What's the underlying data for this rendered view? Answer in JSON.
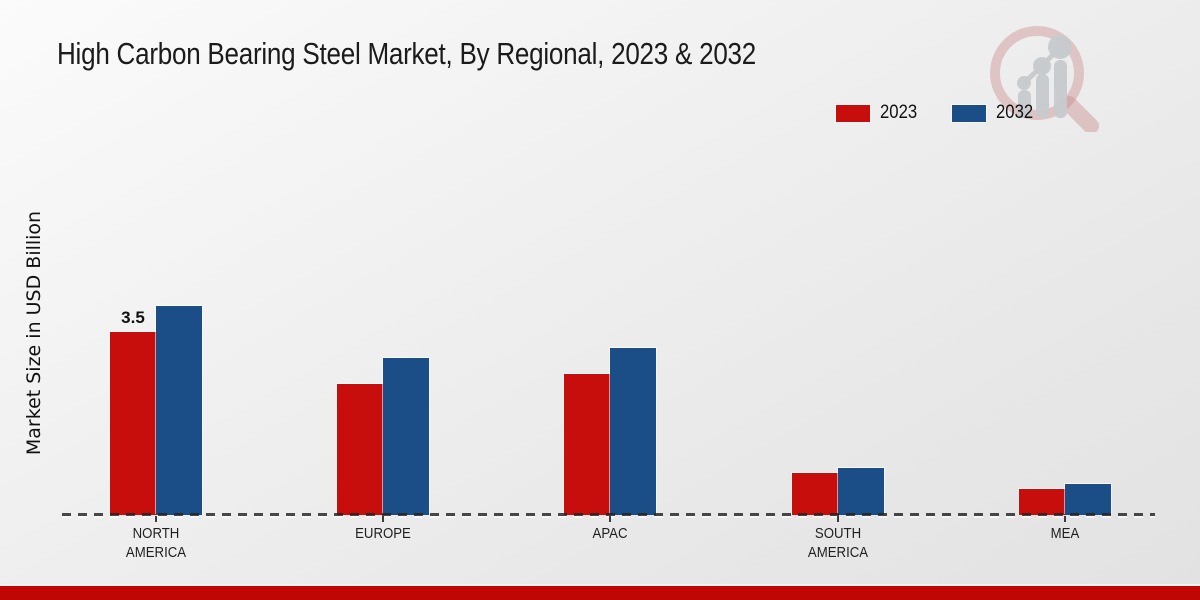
{
  "title": "High Carbon Bearing Steel Market, By Regional, 2023 & 2032",
  "y_axis_label": "Market Size in USD Billion",
  "legend": {
    "position": "top-right",
    "items": [
      {
        "label": "2023",
        "color": "#c80d0d"
      },
      {
        "label": "2032",
        "color": "#1b4d87"
      }
    ]
  },
  "colors": {
    "series_2023": "#c80d0d",
    "series_2032": "#1b4d87",
    "footer_bar": "#c00505",
    "axis_line": "#333333",
    "background": "#ececec"
  },
  "icons": {
    "watermark": "magnifier-bar-chart-logo"
  },
  "chart_data": {
    "type": "bar",
    "categories": [
      "NORTH AMERICA",
      "EUROPE",
      "APAC",
      "SOUTH AMERICA",
      "MEA"
    ],
    "category_label_lines": [
      [
        "NORTH",
        "AMERICA"
      ],
      [
        "EUROPE"
      ],
      [
        "APAC"
      ],
      [
        "SOUTH",
        "AMERICA"
      ],
      [
        "MEA"
      ]
    ],
    "series": [
      {
        "name": "2023",
        "color": "#c80d0d",
        "values": [
          3.5,
          2.5,
          2.7,
          0.8,
          0.5
        ]
      },
      {
        "name": "2032",
        "color": "#1b4d87",
        "values": [
          4.0,
          3.0,
          3.2,
          0.9,
          0.6
        ]
      }
    ],
    "data_labels": [
      {
        "series": "2023",
        "category": "NORTH AMERICA",
        "text": "3.5"
      }
    ],
    "xlabel": "",
    "ylabel": "Market Size in USD Billion",
    "ylim": [
      0,
      4.6
    ],
    "grid": false,
    "legend_position": "top-right",
    "baseline_style": "dashed"
  }
}
